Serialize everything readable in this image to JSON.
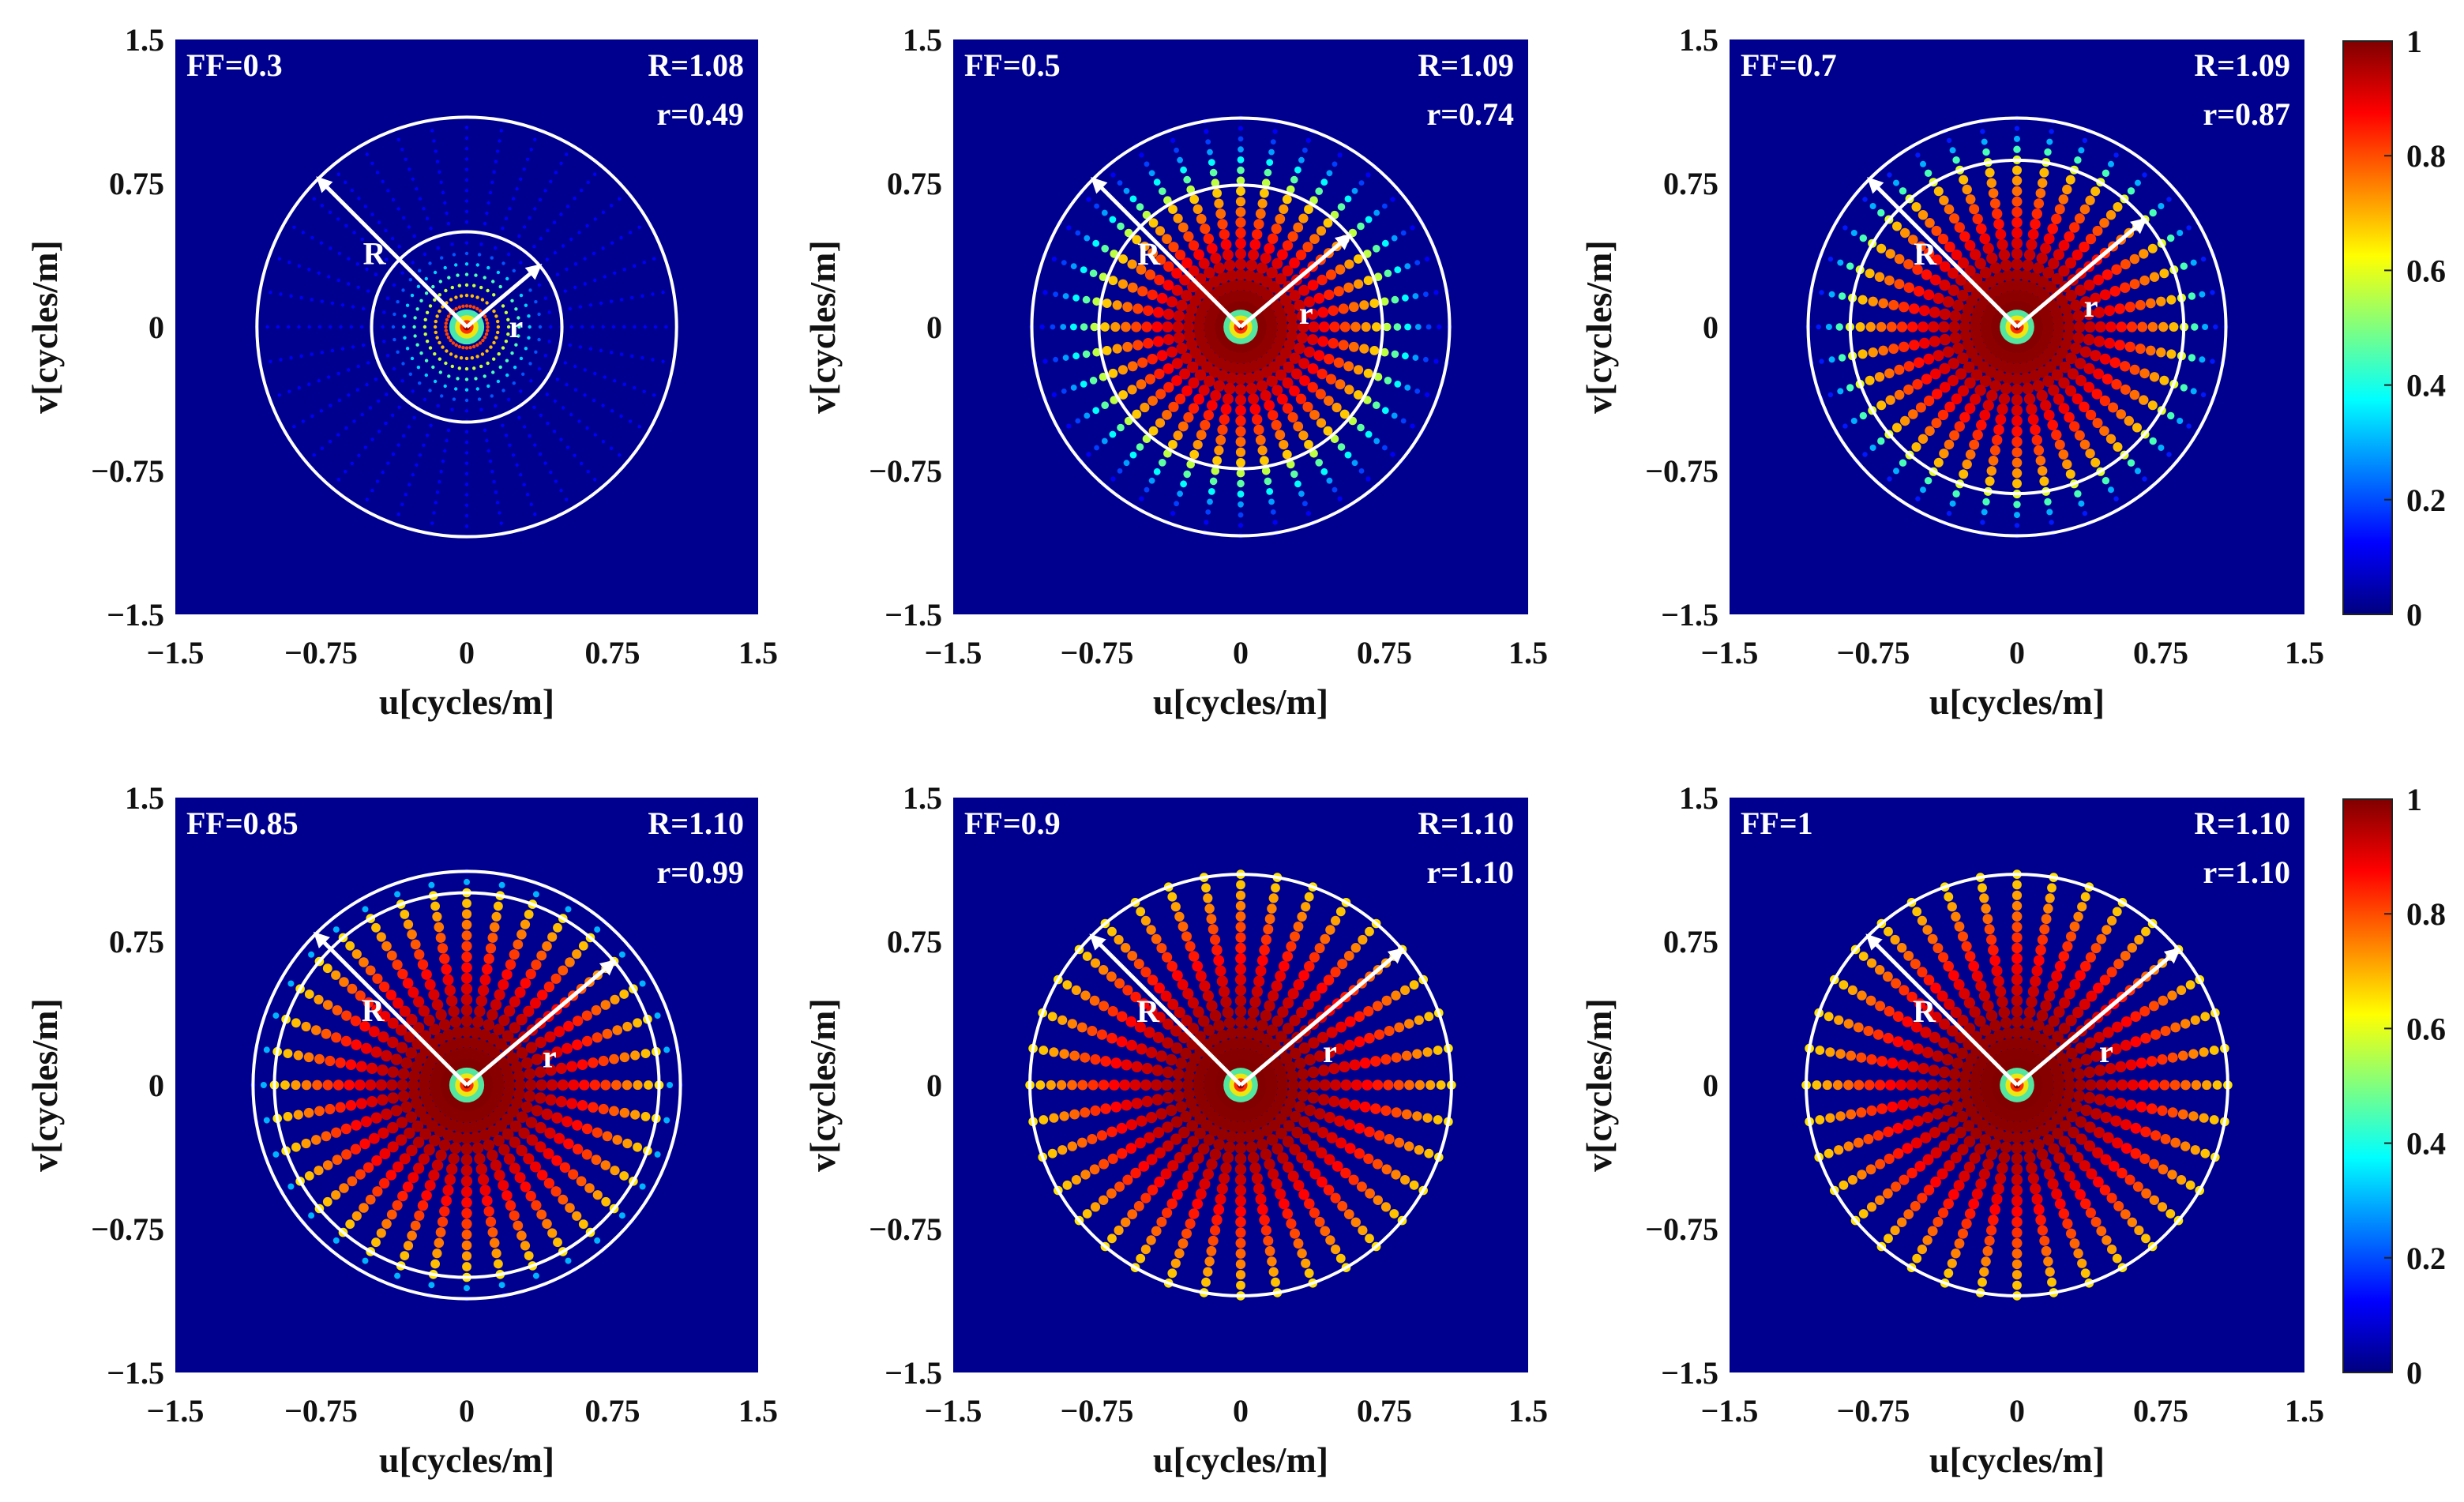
{
  "colors": {
    "background": "#00008f",
    "ring": "#ffffff",
    "colormap": [
      "#00007f",
      "#0000ff",
      "#007fff",
      "#00ffff",
      "#7fff7f",
      "#ffff00",
      "#ff7f00",
      "#ff0000",
      "#7f0000"
    ]
  },
  "colorbar": {
    "min": 0,
    "max": 1,
    "ticks": [
      "0",
      "0.2",
      "0.4",
      "0.6",
      "0.8",
      "1"
    ]
  },
  "chart_data": [
    {
      "type": "scatter",
      "panel": "FF=0.3",
      "ff_label": "FF=0.3",
      "R_label": "R=1.08",
      "r_label": "r=0.49",
      "R": 1.08,
      "r": 0.49,
      "arrow_R": "R",
      "arrow_r": "r",
      "spokes": 36,
      "xlabel": "u[cycles/m]",
      "ylabel": "v[cycles/m]",
      "xlim": [
        -1.5,
        1.5
      ],
      "ylim": [
        -1.5,
        1.5
      ],
      "xticks": [
        "−1.5",
        "−0.75",
        "0",
        "0.75",
        "1.5"
      ],
      "yticks": [
        "1.5",
        "0.75",
        "0",
        "−0.75",
        "−1.5"
      ]
    },
    {
      "type": "scatter",
      "panel": "FF=0.5",
      "ff_label": "FF=0.5",
      "R_label": "R=1.09",
      "r_label": "r=0.74",
      "R": 1.09,
      "r": 0.74,
      "arrow_R": "R",
      "arrow_r": "r",
      "spokes": 36,
      "xlabel": "u[cycles/m]",
      "ylabel": "v[cycles/m]",
      "xlim": [
        -1.5,
        1.5
      ],
      "ylim": [
        -1.5,
        1.5
      ],
      "xticks": [
        "−1.5",
        "−0.75",
        "0",
        "0.75",
        "1.5"
      ],
      "yticks": [
        "1.5",
        "0.75",
        "0",
        "−0.75",
        "−1.5"
      ]
    },
    {
      "type": "scatter",
      "panel": "FF=0.7",
      "ff_label": "FF=0.7",
      "R_label": "R=1.09",
      "r_label": "r=0.87",
      "R": 1.09,
      "r": 0.87,
      "arrow_R": "R",
      "arrow_r": "r",
      "spokes": 36,
      "xlabel": "u[cycles/m]",
      "ylabel": "v[cycles/m]",
      "xlim": [
        -1.5,
        1.5
      ],
      "ylim": [
        -1.5,
        1.5
      ],
      "xticks": [
        "−1.5",
        "−0.75",
        "0",
        "0.75",
        "1.5"
      ],
      "yticks": [
        "1.5",
        "0.75",
        "0",
        "−0.75",
        "−1.5"
      ]
    },
    {
      "type": "scatter",
      "panel": "FF=0.85",
      "ff_label": "FF=0.85",
      "R_label": "R=1.10",
      "r_label": "r=0.99",
      "R": 1.1,
      "r": 0.99,
      "arrow_R": "R",
      "arrow_r": "r",
      "spokes": 36,
      "xlabel": "u[cycles/m]",
      "ylabel": "v[cycles/m]",
      "xlim": [
        -1.5,
        1.5
      ],
      "ylim": [
        -1.5,
        1.5
      ],
      "xticks": [
        "−1.5",
        "−0.75",
        "0",
        "0.75",
        "1.5"
      ],
      "yticks": [
        "1.5",
        "0.75",
        "0",
        "−0.75",
        "−1.5"
      ]
    },
    {
      "type": "scatter",
      "panel": "FF=0.9",
      "ff_label": "FF=0.9",
      "R_label": "R=1.10",
      "r_label": "r=1.10",
      "R": 1.1,
      "r": 1.1,
      "arrow_R": "R",
      "arrow_r": "r",
      "spokes": 36,
      "xlabel": "u[cycles/m]",
      "ylabel": "v[cycles/m]",
      "xlim": [
        -1.5,
        1.5
      ],
      "ylim": [
        -1.5,
        1.5
      ],
      "xticks": [
        "−1.5",
        "−0.75",
        "0",
        "0.75",
        "1.5"
      ],
      "yticks": [
        "1.5",
        "0.75",
        "0",
        "−0.75",
        "−1.5"
      ]
    },
    {
      "type": "scatter",
      "panel": "FF=1",
      "ff_label": "FF=1",
      "R_label": "R=1.10",
      "r_label": "r=1.10",
      "R": 1.1,
      "r": 1.1,
      "arrow_R": "R",
      "arrow_r": "r",
      "spokes": 36,
      "xlabel": "u[cycles/m]",
      "ylabel": "v[cycles/m]",
      "xlim": [
        -1.5,
        1.5
      ],
      "ylim": [
        -1.5,
        1.5
      ],
      "xticks": [
        "−1.5",
        "−0.75",
        "0",
        "0.75",
        "1.5"
      ],
      "yticks": [
        "1.5",
        "0.75",
        "0",
        "−0.75",
        "−1.5"
      ]
    }
  ]
}
